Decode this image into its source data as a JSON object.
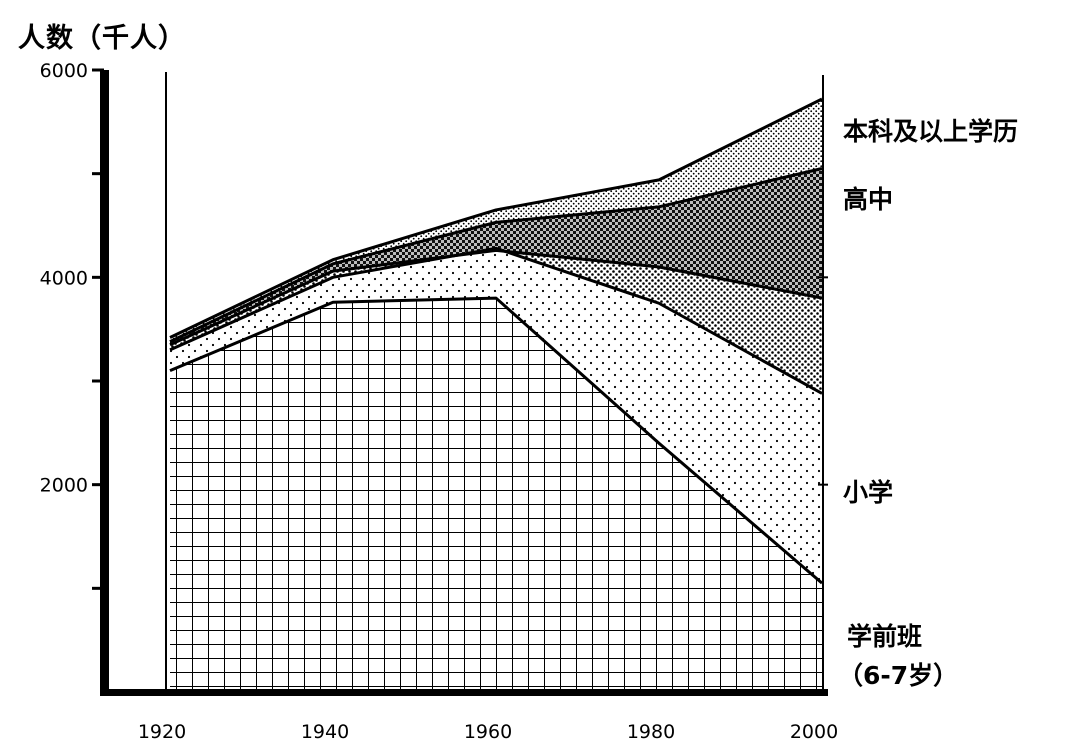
{
  "chart_data": {
    "type": "area",
    "stacked": true,
    "ylabel": "人数（千人）",
    "xlabel": "",
    "x": [
      1920,
      1940,
      1960,
      1980,
      2000
    ],
    "ylim": [
      0,
      6000
    ],
    "xlim": [
      1920,
      2000
    ],
    "y_ticks": [
      "2000",
      "4000",
      "6000"
    ],
    "x_ticks": [
      "1920",
      "1940",
      "1960",
      "1980",
      "2000"
    ],
    "boundaries": [
      {
        "name": "学前班（6-7岁）",
        "values": [
          3100,
          3760,
          3800,
          2400,
          1050
        ]
      },
      {
        "name": "小学",
        "values": [
          3300,
          4000,
          4280,
          3750,
          2880
        ]
      },
      {
        "name": "inner-line-1",
        "values": [
          3350,
          4060,
          4260,
          4100,
          3800
        ]
      },
      {
        "name": "高中",
        "values": [
          3380,
          4130,
          4530,
          4680,
          5050
        ]
      },
      {
        "name": "本科及以上学历",
        "values": [
          3420,
          4170,
          4650,
          4940,
          5720
        ]
      }
    ],
    "series_labels": {
      "bachelor": "本科及以上学历",
      "high_school": "高中",
      "primary": "小学",
      "preschool_line1": "学前班",
      "preschool_line2": "（6-7岁）"
    },
    "grid": false,
    "legend": "labels at right"
  }
}
